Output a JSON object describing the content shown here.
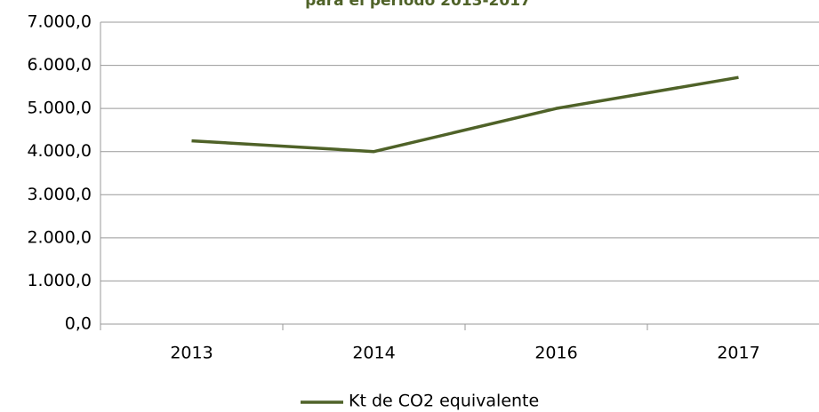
{
  "chart_data": {
    "type": "line",
    "title": "para el período 2013-2017",
    "categories": [
      "2013",
      "2014",
      "2016",
      "2017"
    ],
    "series": [
      {
        "name": "Kt de CO2 equivalente",
        "color": "#4f6228",
        "values": [
          4250,
          4000,
          5000,
          5720
        ]
      }
    ],
    "ylim": [
      0,
      7000
    ],
    "yticks": [
      {
        "value": 0,
        "label": "0,0"
      },
      {
        "value": 1000,
        "label": "1.000,0"
      },
      {
        "value": 2000,
        "label": "2.000,0"
      },
      {
        "value": 3000,
        "label": "3.000,0"
      },
      {
        "value": 4000,
        "label": "4.000,0"
      },
      {
        "value": 5000,
        "label": "5.000,0"
      },
      {
        "value": 6000,
        "label": "6.000,0"
      },
      {
        "value": 7000,
        "label": "7.000,0"
      }
    ],
    "grid": true,
    "legend": "bottom"
  }
}
